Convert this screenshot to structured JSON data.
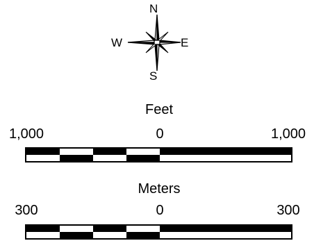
{
  "compass": {
    "north": "N",
    "south": "S",
    "east": "E",
    "west": "W"
  },
  "scales": [
    {
      "unit": "Feet",
      "labels": {
        "left": "1,000",
        "center": "0",
        "right": "1,000"
      }
    },
    {
      "unit": "Meters",
      "labels": {
        "left": "300",
        "center": "0",
        "right": "300"
      }
    }
  ],
  "colors": {
    "ink": "#000000",
    "paper": "#ffffff"
  }
}
